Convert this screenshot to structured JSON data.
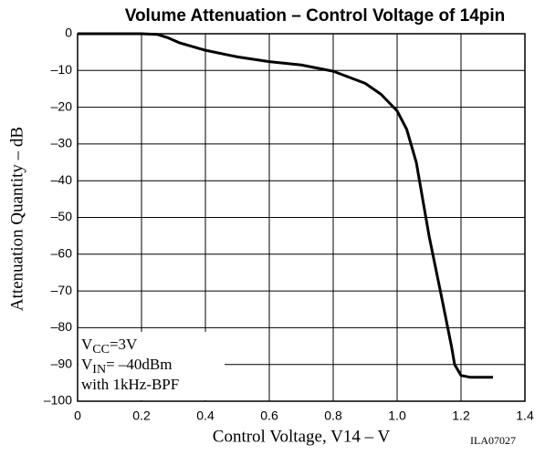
{
  "chart_data": {
    "type": "line",
    "title": "Volume Attenuation  –  Control Voltage of 14pin",
    "x_label": "Control Voltage,  V14  –  V",
    "y_label": "Attenuation Quantity  –  dB",
    "figure_code": "ILA07027",
    "annotations": [
      {
        "main": "V",
        "sub": "CC",
        "rest": "=3V"
      },
      {
        "main": "V",
        "sub": "IN",
        "rest": "= –40dBm"
      },
      {
        "main": "with 1kHz-BPF"
      }
    ],
    "x": [
      0,
      0.2,
      0.25,
      0.28,
      0.32,
      0.4,
      0.5,
      0.6,
      0.7,
      0.8,
      0.9,
      0.95,
      1.0,
      1.03,
      1.06,
      1.1,
      1.14,
      1.17,
      1.18,
      1.2,
      1.23,
      1.3
    ],
    "values": [
      0,
      0,
      -0.2,
      -1,
      -2.5,
      -4.5,
      -6.3,
      -7.6,
      -8.5,
      -10.2,
      -13.5,
      -16.5,
      -21,
      -26,
      -35,
      -55,
      -72,
      -85,
      -90,
      -93,
      -93.5,
      -93.5
    ],
    "color": "#000000",
    "xlim": [
      0,
      1.4
    ],
    "xticks": [
      0,
      0.2,
      0.4,
      0.6,
      0.8,
      {
        "value": 1,
        "label": "1.0"
      },
      1.2,
      1.4
    ],
    "ylim": [
      -100,
      0
    ],
    "yticks": [
      0,
      {
        "value": -10,
        "label": "–10"
      },
      {
        "value": -20,
        "label": "–20"
      },
      {
        "value": -30,
        "label": "–30"
      },
      {
        "value": -40,
        "label": "–40"
      },
      {
        "value": -50,
        "label": "–50"
      },
      {
        "value": -60,
        "label": "–60"
      },
      {
        "value": -70,
        "label": "–70"
      },
      {
        "value": -80,
        "label": "–80"
      },
      {
        "value": -90,
        "label": "–90"
      },
      {
        "value": -100,
        "label": "–100"
      }
    ],
    "grid": true
  }
}
